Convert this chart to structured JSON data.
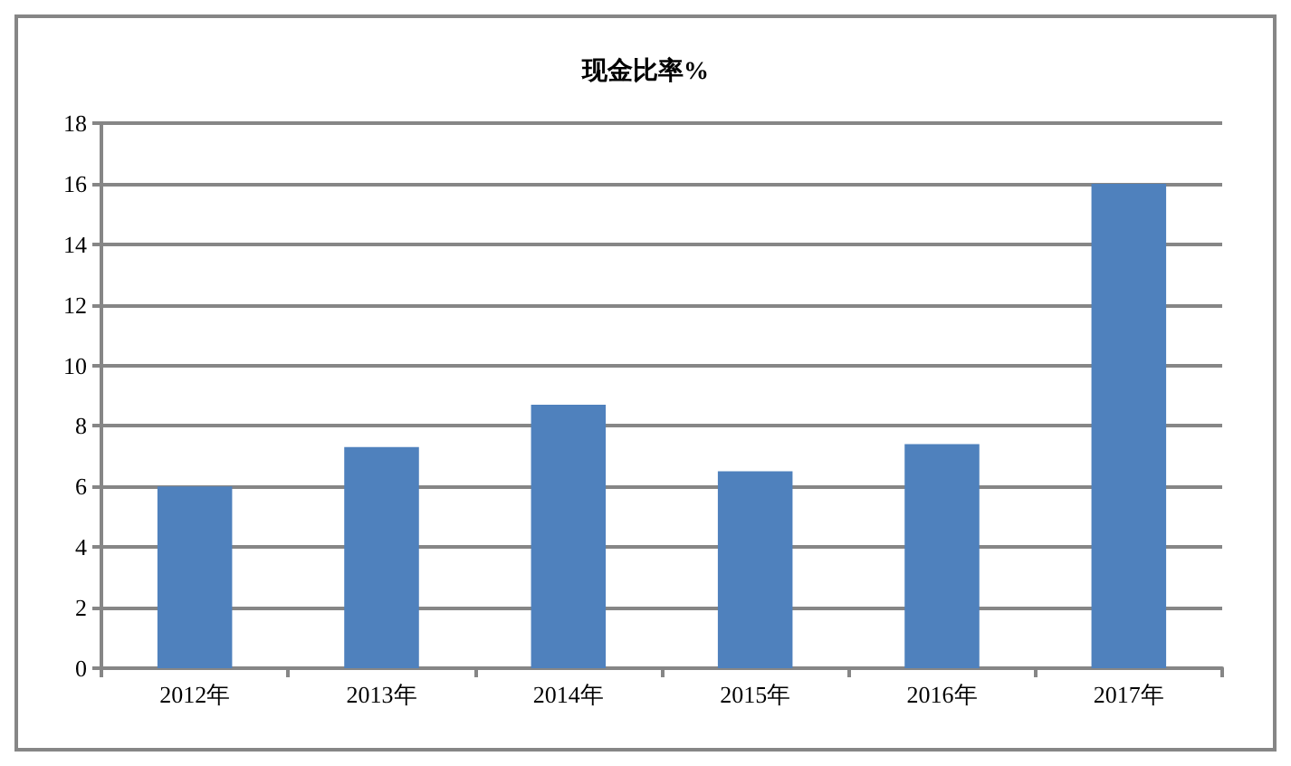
{
  "chart_data": {
    "type": "bar",
    "title": "现金比率%",
    "categories": [
      "2012年",
      "2013年",
      "2014年",
      "2015年",
      "2016年",
      "2017年"
    ],
    "values": [
      6.0,
      7.3,
      8.7,
      6.5,
      7.4,
      16.0
    ],
    "color": "#4f81bd",
    "ylim": [
      0,
      18
    ],
    "yticks": [
      0,
      2,
      4,
      6,
      8,
      10,
      12,
      14,
      16,
      18
    ],
    "grid": "y"
  }
}
